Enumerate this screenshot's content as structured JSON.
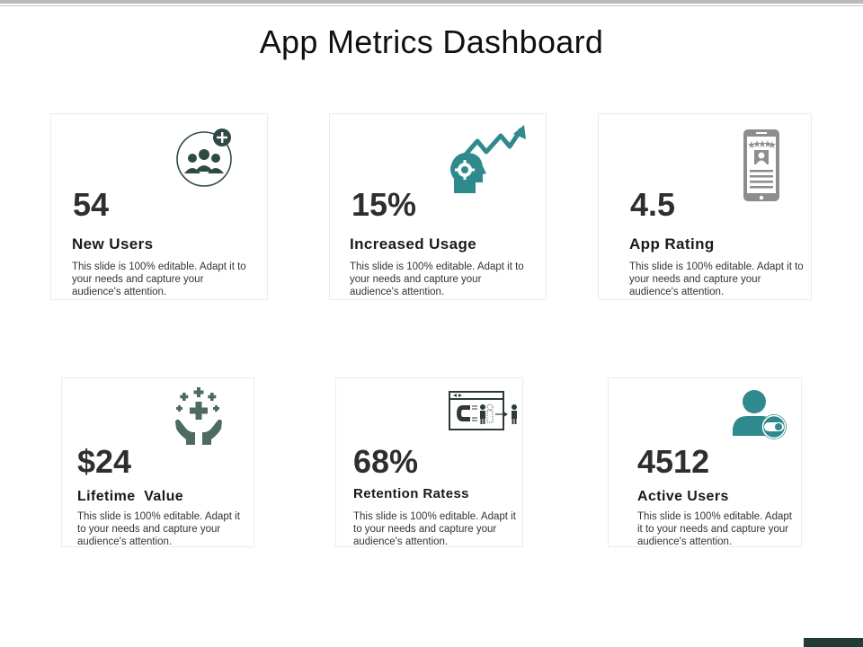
{
  "page": {
    "title": "App Metrics Dashboard"
  },
  "cards": [
    {
      "value": "54",
      "label": "New Users",
      "desc": "This slide is 100% editable. Adapt it to your needs and capture your audience's attention.",
      "icon": "user-group-add-icon"
    },
    {
      "value": "15%",
      "label": "Increased Usage",
      "desc": "This slide is 100% editable. Adapt it to your needs and capture your audience's attention.",
      "icon": "head-gear-growth-icon"
    },
    {
      "value": "4.5",
      "label": "App Rating",
      "desc": "This slide is 100% editable. Adapt it to your needs and capture your audience's attention.",
      "icon": "phone-rating-icon"
    },
    {
      "value": "$24",
      "label": "Lifetime  Value",
      "desc": "This slide is 100% editable. Adapt it to your needs and capture your audience's attention.",
      "icon": "hands-plus-icon"
    },
    {
      "value": "68%",
      "label": "Retention Ratess",
      "desc": "This slide is 100% editable. Adapt it to your needs and capture your audience's attention.",
      "icon": "magnet-retention-icon"
    },
    {
      "value": "4512",
      "label": "Active Users",
      "desc": "This slide is 100% editable. Adapt it to your needs and capture your audience's attention.",
      "icon": "user-toggle-icon"
    }
  ],
  "colors": {
    "teal": "#2f8a8e",
    "dark": "#2e4a44",
    "grey": "#8d8d8d"
  }
}
